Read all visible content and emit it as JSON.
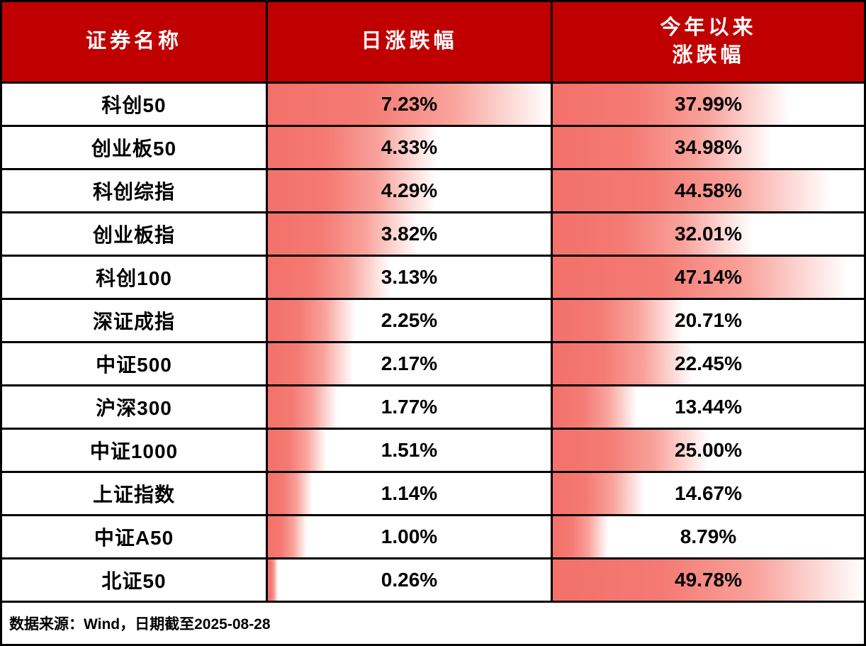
{
  "colors": {
    "header_bg": "#c00000",
    "header_text": "#ffffff",
    "bar_red": "#f3716a",
    "border": "#000000"
  },
  "table": {
    "header": {
      "col_name": "证券名称",
      "col_daily": "日涨跌幅",
      "col_ytd": "今年以来\n涨跌幅"
    }
  },
  "footer": {
    "text": "数据来源：Wind，日期截至2025-08-28"
  },
  "chart_data": {
    "type": "table",
    "title": "",
    "columns": [
      "证券名称",
      "日涨跌幅",
      "今年以来涨跌幅"
    ],
    "bar_scale": {
      "daily_max": 7.23,
      "ytd_max": 49.78
    },
    "rows": [
      {
        "name": "科创50",
        "daily": 7.23,
        "daily_label": "7.23%",
        "ytd": 37.99,
        "ytd_label": "37.99%"
      },
      {
        "name": "创业板50",
        "daily": 4.33,
        "daily_label": "4.33%",
        "ytd": 34.98,
        "ytd_label": "34.98%"
      },
      {
        "name": "科创综指",
        "daily": 4.29,
        "daily_label": "4.29%",
        "ytd": 44.58,
        "ytd_label": "44.58%"
      },
      {
        "name": "创业板指",
        "daily": 3.82,
        "daily_label": "3.82%",
        "ytd": 32.01,
        "ytd_label": "32.01%"
      },
      {
        "name": "科创100",
        "daily": 3.13,
        "daily_label": "3.13%",
        "ytd": 47.14,
        "ytd_label": "47.14%"
      },
      {
        "name": "深证成指",
        "daily": 2.25,
        "daily_label": "2.25%",
        "ytd": 20.71,
        "ytd_label": "20.71%"
      },
      {
        "name": "中证500",
        "daily": 2.17,
        "daily_label": "2.17%",
        "ytd": 22.45,
        "ytd_label": "22.45%"
      },
      {
        "name": "沪深300",
        "daily": 1.77,
        "daily_label": "1.77%",
        "ytd": 13.44,
        "ytd_label": "13.44%"
      },
      {
        "name": "中证1000",
        "daily": 1.51,
        "daily_label": "1.51%",
        "ytd": 25.0,
        "ytd_label": "25.00%"
      },
      {
        "name": "上证指数",
        "daily": 1.14,
        "daily_label": "1.14%",
        "ytd": 14.67,
        "ytd_label": "14.67%"
      },
      {
        "name": "中证A50",
        "daily": 1.0,
        "daily_label": "1.00%",
        "ytd": 8.79,
        "ytd_label": "8.79%"
      },
      {
        "name": "北证50",
        "daily": 0.26,
        "daily_label": "0.26%",
        "ytd": 49.78,
        "ytd_label": "49.78%"
      }
    ]
  }
}
